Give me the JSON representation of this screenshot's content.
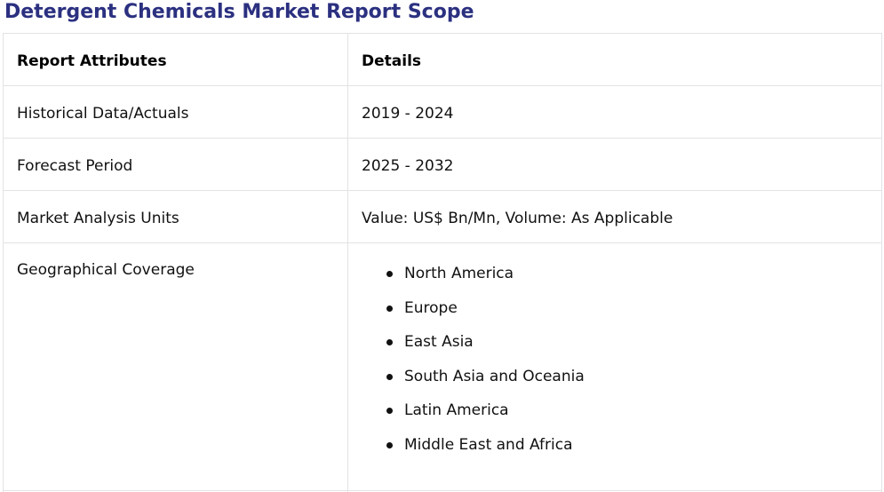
{
  "title": "Detergent Chemicals Market Report Scope",
  "table": {
    "headers": [
      "Report Attributes",
      "Details"
    ],
    "rows": [
      {
        "attribute": "Historical Data/Actuals",
        "detail": "2019 - 2024"
      },
      {
        "attribute": "Forecast Period",
        "detail": "2025 - 2032"
      },
      {
        "attribute": "Market Analysis Units",
        "detail": "Value: US$ Bn/Mn, Volume: As Applicable"
      }
    ],
    "geography": {
      "attribute": "Geographical Coverage",
      "regions": [
        "North America",
        "Europe",
        "East Asia",
        "South Asia and Oceania",
        "Latin America",
        "Middle East and Africa"
      ]
    }
  },
  "colors": {
    "title": "#2b3080",
    "border": "#e3e3e3"
  }
}
